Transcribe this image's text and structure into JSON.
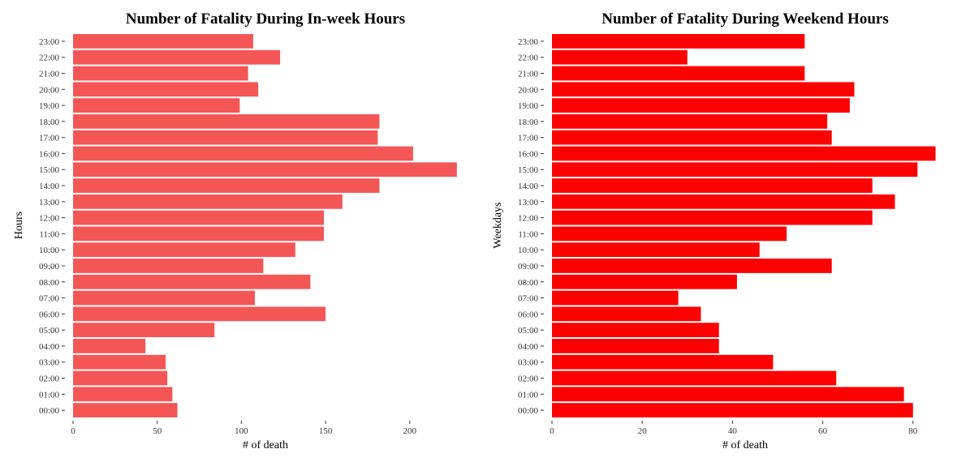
{
  "chart_data": [
    {
      "type": "bar",
      "orientation": "horizontal",
      "title": "Number of Fatality During In-week Hours",
      "xlabel": "# of death",
      "ylabel": "Hours",
      "xlim": [
        0,
        230
      ],
      "xticks": [
        0,
        50,
        100,
        150,
        200
      ],
      "grid": false,
      "color": "#f45656",
      "categories": [
        "00:00",
        "01:00",
        "02:00",
        "03:00",
        "04:00",
        "05:00",
        "06:00",
        "07:00",
        "08:00",
        "09:00",
        "10:00",
        "11:00",
        "12:00",
        "13:00",
        "14:00",
        "15:00",
        "16:00",
        "17:00",
        "18:00",
        "19:00",
        "20:00",
        "21:00",
        "22:00",
        "23:00"
      ],
      "values": [
        62,
        59,
        56,
        55,
        43,
        84,
        150,
        108,
        141,
        113,
        132,
        149,
        149,
        160,
        182,
        228,
        202,
        181,
        182,
        99,
        110,
        104,
        123,
        107
      ]
    },
    {
      "type": "bar",
      "orientation": "horizontal",
      "title": "Number of Fatality During Weekend Hours",
      "xlabel": "# of death",
      "ylabel": "Weekdays",
      "xlim": [
        0,
        85.8
      ],
      "xticks": [
        0,
        20,
        40,
        60,
        80
      ],
      "grid": false,
      "color": "#ff0000",
      "categories": [
        "00:00",
        "01:00",
        "02:00",
        "03:00",
        "04:00",
        "05:00",
        "06:00",
        "07:00",
        "08:00",
        "09:00",
        "10:00",
        "11:00",
        "12:00",
        "13:00",
        "14:00",
        "15:00",
        "16:00",
        "17:00",
        "18:00",
        "19:00",
        "20:00",
        "21:00",
        "22:00",
        "23:00"
      ],
      "values": [
        80,
        78,
        63,
        49,
        37,
        37,
        33,
        28,
        41,
        62,
        46,
        52,
        71,
        76,
        71,
        81,
        85,
        62,
        61,
        66,
        67,
        56,
        30,
        56
      ]
    }
  ]
}
